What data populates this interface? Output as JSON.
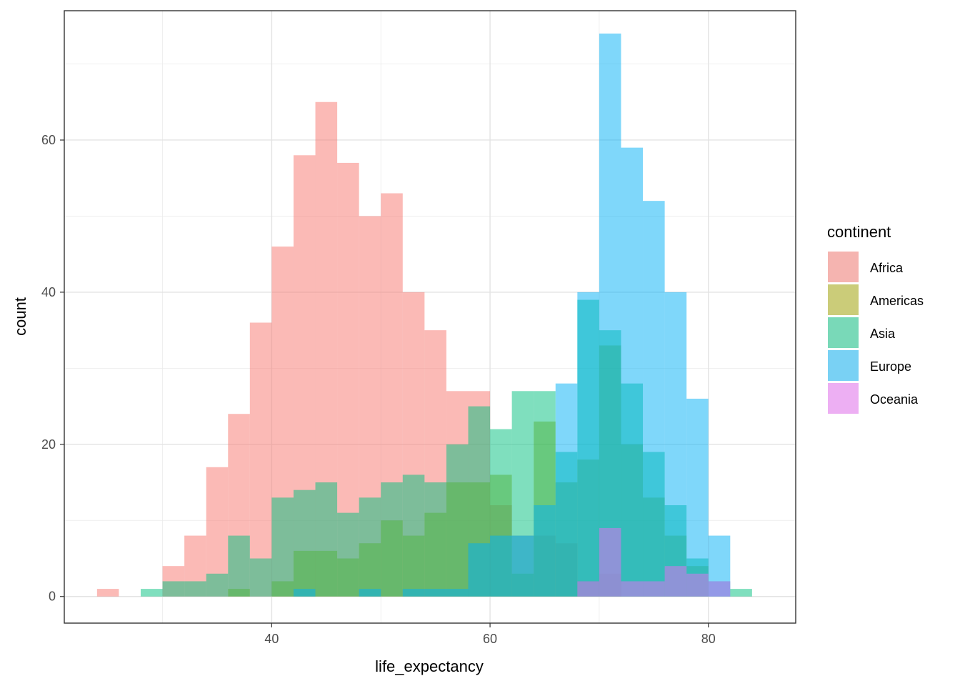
{
  "chart_data": {
    "type": "histogram",
    "xlabel": "life_expectancy",
    "ylabel": "count",
    "xlim": [
      21,
      88
    ],
    "ylim": [
      -3.5,
      77
    ],
    "x_ticks": [
      40,
      60,
      80
    ],
    "y_ticks": [
      0,
      20,
      40,
      60
    ],
    "grid": true,
    "legend_position": "right",
    "legend_title": "continent",
    "bin_width": 2,
    "fill_opacity": 0.5,
    "bin_starts": [
      24,
      26,
      28,
      30,
      32,
      34,
      36,
      38,
      40,
      42,
      44,
      46,
      48,
      50,
      52,
      54,
      56,
      58,
      60,
      62,
      64,
      66,
      68,
      70,
      72,
      74,
      76,
      78,
      80,
      82
    ],
    "series": [
      {
        "name": "Africa",
        "color": "#F8766D",
        "counts": [
          1,
          0,
          0,
          4,
          8,
          17,
          24,
          36,
          46,
          58,
          65,
          57,
          50,
          53,
          40,
          35,
          27,
          27,
          12,
          8,
          8,
          7,
          2,
          3,
          0,
          0,
          0,
          0,
          0,
          0
        ]
      },
      {
        "name": "Americas",
        "color": "#A3A500",
        "counts": [
          0,
          0,
          0,
          0,
          0,
          0,
          1,
          0,
          2,
          6,
          6,
          5,
          7,
          10,
          8,
          11,
          15,
          15,
          16,
          3,
          23,
          15,
          18,
          33,
          20,
          13,
          8,
          4,
          0,
          0
        ]
      },
      {
        "name": "Asia",
        "color": "#00BF7D",
        "counts": [
          0,
          0,
          1,
          2,
          2,
          3,
          8,
          5,
          13,
          14,
          15,
          11,
          13,
          15,
          16,
          15,
          20,
          25,
          22,
          27,
          27,
          19,
          39,
          35,
          28,
          19,
          12,
          5,
          2,
          1
        ]
      },
      {
        "name": "Europe",
        "color": "#00B0F6",
        "counts": [
          0,
          0,
          0,
          0,
          0,
          0,
          0,
          0,
          0,
          1,
          0,
          0,
          1,
          0,
          1,
          1,
          1,
          7,
          8,
          8,
          12,
          28,
          40,
          74,
          59,
          52,
          40,
          26,
          8,
          0
        ]
      },
      {
        "name": "Oceania",
        "color": "#E76BF3",
        "counts": [
          0,
          0,
          0,
          0,
          0,
          0,
          0,
          0,
          0,
          0,
          0,
          0,
          0,
          0,
          0,
          0,
          0,
          0,
          0,
          0,
          0,
          0,
          2,
          9,
          2,
          2,
          4,
          3,
          2,
          0
        ]
      }
    ]
  }
}
